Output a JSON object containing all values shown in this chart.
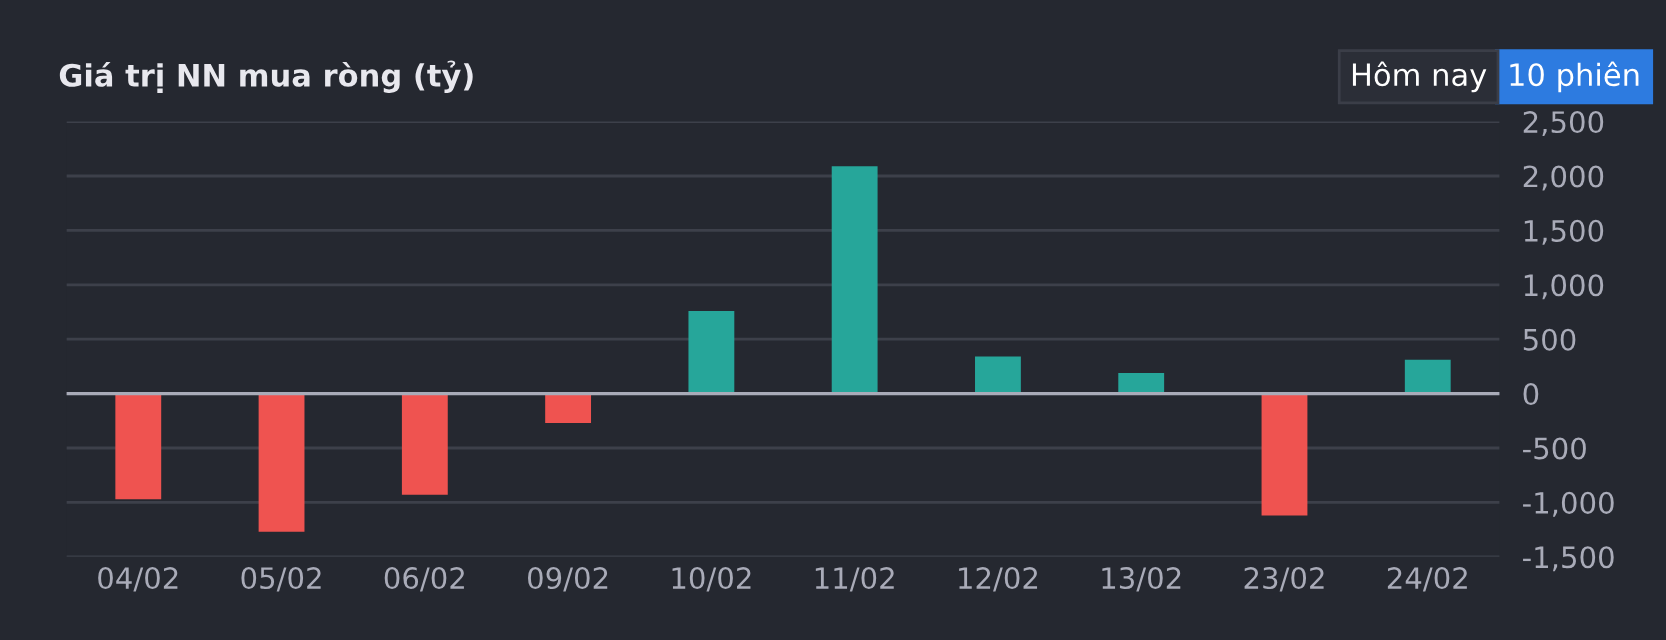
{
  "chart_data": {
    "type": "bar",
    "title": "Giá trị NN mua ròng (tỷ)",
    "categories": [
      "04/02",
      "05/02",
      "06/02",
      "09/02",
      "10/02",
      "11/02",
      "12/02",
      "13/02",
      "23/02",
      "24/02"
    ],
    "values": [
      -970,
      -1270,
      -930,
      -270,
      760,
      2090,
      340,
      190,
      -1120,
      310
    ],
    "colors": [
      "#ef5350",
      "#ef5350",
      "#ef5350",
      "#ef5350",
      "#26a69a",
      "#26a69a",
      "#26a69a",
      "#26a69a",
      "#ef5350",
      "#26a69a"
    ],
    "ylim": [
      -1500,
      2500
    ],
    "yticks": [
      {
        "value": -1500,
        "label": "-1,500"
      },
      {
        "value": -1000,
        "label": "-1,000"
      },
      {
        "value": -500,
        "label": "-500"
      },
      0,
      500,
      {
        "value": 1000,
        "label": "1,000"
      },
      {
        "value": 1500,
        "label": "1,500"
      },
      {
        "value": 2000,
        "label": "2,000"
      },
      {
        "value": 2500,
        "label": "2,500"
      }
    ],
    "grid": "y",
    "annotations": [
      "Hôm nay",
      "10 phiên"
    ]
  }
}
